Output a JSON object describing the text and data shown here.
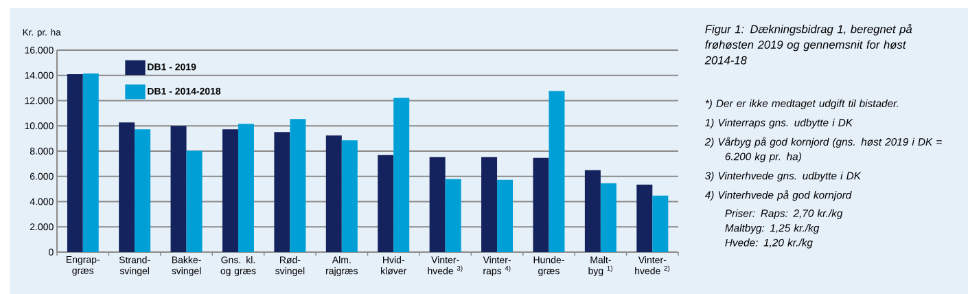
{
  "chart_data": {
    "type": "bar",
    "title": "Figur 1: Dækningsbidrag 1, beregnet på frøhøsten 2019 og gennemsnit for høst 2014-18",
    "ylabel": "Kr. pr. ha",
    "categories": [
      "Engrap- græs",
      "Strand- svingel",
      "Bakke- svingel",
      "Gns. kl. og græs",
      "Rød- svingel",
      "Alm. rajgræs",
      "Hvid- kløver",
      "Vinter- hvede $^{3)}$",
      "Vinter- raps $^{4)}$",
      "Hunde- græs",
      "Malt- byg $^{1)}$",
      "Vinter- hvede $^{2)}$"
    ],
    "series": [
      {
        "name": "DB1 - 2019",
        "color": "#14235e",
        "values": [
          14100,
          10270,
          10000,
          9730,
          9510,
          9240,
          7690,
          7530,
          7530,
          7470,
          6490,
          5350
        ]
      },
      {
        "name": "DB1 - 2014-2018",
        "color": "#00a0d6",
        "values": [
          14150,
          9730,
          8020,
          10160,
          10540,
          8860,
          12220,
          5780,
          5730,
          12760,
          5450,
          4470
        ]
      }
    ],
    "ylim": [
      0,
      16000
    ],
    "yticks": [
      0,
      {
        "value": 2000,
        "label": "2.000"
      },
      {
        "value": 4000,
        "label": "4.000"
      },
      {
        "value": 6000,
        "label": "6.000"
      },
      {
        "value": 8000,
        "label": "8.000"
      },
      {
        "value": 10000,
        "label": "10.000"
      },
      {
        "value": 12000,
        "label": "12.000"
      },
      {
        "value": 14000,
        "label": "14.000"
      },
      {
        "value": 16000,
        "label": "16.000"
      }
    ],
    "grid": "y",
    "legend": "top left",
    "annotations": [
      "*) Der er ikke medtaget udgift til bistader.",
      "1) Vinterraps gns. udbytte i DK",
      "2) Vårbyg på god kornjord (gns. høst 2019 i DK = 6.200 kg pr. ha)",
      "3) Vinterhvede gns. udbytte i DK",
      "4) Vinterhvede på god kornjord",
      "Priser: Raps: 2,70 kr./kg",
      "Maltbyg: 1,25 kr./kg",
      "Hvede: 1,20 kr./kg"
    ]
  }
}
